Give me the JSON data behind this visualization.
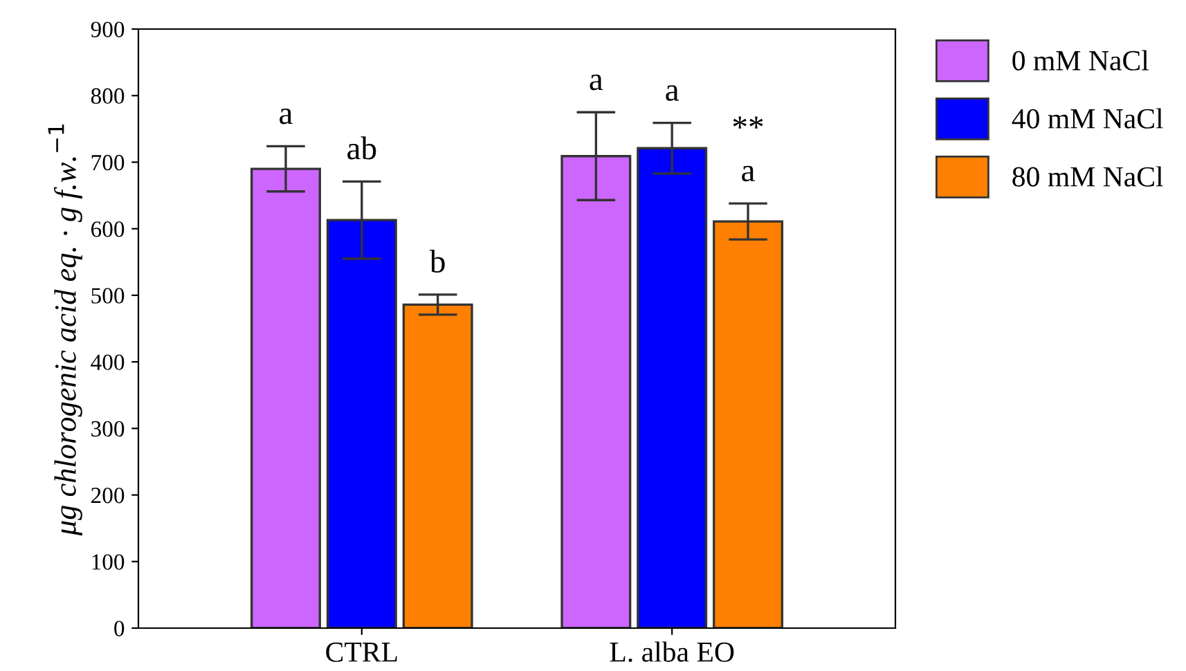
{
  "chart_data": {
    "type": "bar",
    "ylabel": "μg chlorogenic acid eq. · g f.w.$^{−1}$",
    "categories": [
      "CTRL",
      "L. alba EO"
    ],
    "series": [
      {
        "name": "0 mM NaCl",
        "color": "#cc66ff",
        "values": [
          690,
          709
        ],
        "errors": [
          34,
          66
        ],
        "value_labels": [
          "a",
          "a"
        ]
      },
      {
        "name": "40 mM NaCl",
        "color": "#0000ff",
        "values": [
          613,
          721
        ],
        "errors": [
          58,
          38
        ],
        "value_labels": [
          "ab",
          "a"
        ]
      },
      {
        "name": "80 mM NaCl",
        "color": "#ff8000",
        "values": [
          486,
          611
        ],
        "errors": [
          15,
          27
        ],
        "value_labels": [
          "b",
          "**\na"
        ]
      }
    ],
    "ylim": [
      0,
      900
    ],
    "yticks": [
      0,
      100,
      200,
      300,
      400,
      500,
      600,
      700,
      800,
      900
    ],
    "legend": "right",
    "grid": false
  }
}
